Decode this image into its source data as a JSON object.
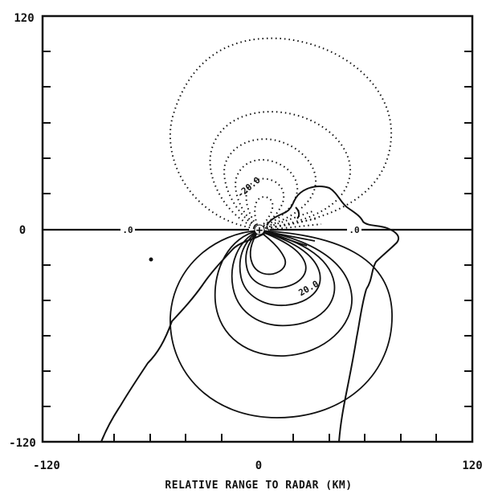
{
  "axes": {
    "x": {
      "min": -120,
      "max": 120,
      "tick_labels": [
        "-120",
        "0",
        "120"
      ]
    },
    "y": {
      "min": -120,
      "max": 120,
      "tick_labels": [
        "120",
        "0",
        "-120"
      ]
    },
    "xlabel": "RELATIVE RANGE TO RADAR (KM)"
  },
  "contour_labels": {
    "upper": "-20.0",
    "lower": "20.0",
    "zero_left": ".0",
    "zero_right": ".0"
  },
  "radar_marker": "+",
  "line_styles": {
    "negative": "dotted",
    "positive": "solid",
    "coastline": "solid"
  },
  "colors": {
    "ink": "#111111",
    "background": "#ffffff"
  }
}
